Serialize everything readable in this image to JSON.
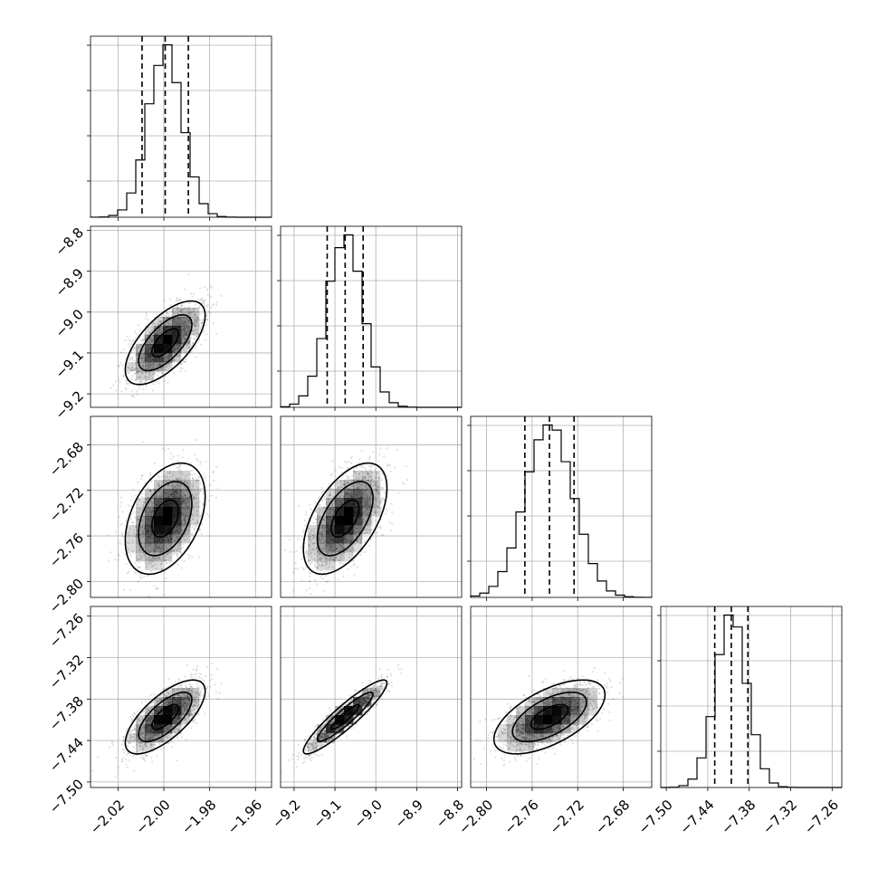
{
  "chart_data": {
    "type": "corner",
    "title": "",
    "grid": true,
    "parameters": [
      {
        "index": 0,
        "range": [
          -2.032,
          -1.953
        ],
        "xticks": [
          -2.02,
          -2.0,
          -1.98,
          -1.96
        ],
        "xtick_labels": [
          "−2.02",
          "−2.00",
          "−1.98",
          "−1.96"
        ],
        "quantiles": [
          -2.0095,
          -1.9994,
          -1.9893
        ],
        "mean": -1.9994,
        "sd": 0.0075
      },
      {
        "index": 1,
        "range": [
          -9.233,
          -8.79
        ],
        "xticks": [
          -9.2,
          -9.1,
          -9.0,
          -8.9,
          -8.8
        ],
        "xtick_labels": [
          "−9.2",
          "−9.1",
          "−9.0",
          "−8.9",
          "−8.8"
        ],
        "yticks": [
          -8.8,
          -8.9,
          -9.0,
          -9.1,
          -9.2
        ],
        "ytick_labels": [
          "−8.8",
          "−8.9",
          "−9.0",
          "−9.1",
          "−9.2"
        ],
        "quantiles": [
          -9.119,
          -9.075,
          -9.031
        ],
        "mean": -9.075,
        "sd": 0.044
      },
      {
        "index": 2,
        "range": [
          -2.814,
          -2.655
        ],
        "xticks": [
          -2.8,
          -2.76,
          -2.72,
          -2.68
        ],
        "xtick_labels": [
          "−2.80",
          "−2.76",
          "−2.72",
          "−2.68"
        ],
        "yticks": [
          -2.68,
          -2.72,
          -2.76,
          -2.8
        ],
        "ytick_labels": [
          "−2.68",
          "−2.72",
          "−2.76",
          "−2.80"
        ],
        "quantiles": [
          -2.7664,
          -2.7448,
          -2.7232
        ],
        "mean": -2.7448,
        "sd": 0.021
      },
      {
        "index": 3,
        "range": [
          -7.508,
          -7.246
        ],
        "xticks": [
          -7.5,
          -7.44,
          -7.38,
          -7.32,
          -7.26
        ],
        "xtick_labels": [
          "−7.50",
          "−7.44",
          "−7.38",
          "−7.32",
          "−7.26"
        ],
        "yticks": [
          -7.26,
          -7.32,
          -7.38,
          -7.44,
          -7.5
        ],
        "ytick_labels": [
          "−7.26",
          "−7.32",
          "−7.38",
          "−7.44",
          "−7.50"
        ],
        "quantiles": [
          -7.4299,
          -7.4059,
          -7.3819
        ],
        "mean": -7.4059,
        "sd": 0.023
      }
    ],
    "correlations": {
      "0-1": 0.65,
      "0-2": 0.4,
      "0-3": 0.7,
      "1-2": 0.55,
      "1-3": 0.92,
      "2-3": 0.6
    },
    "histogram_bins": 20,
    "contour_levels": [
      0.5,
      1.0,
      1.5
    ],
    "colors": {
      "line": "#000000",
      "grid": "#b0b0b0",
      "scatter": "#000000",
      "density": "#000000"
    }
  }
}
